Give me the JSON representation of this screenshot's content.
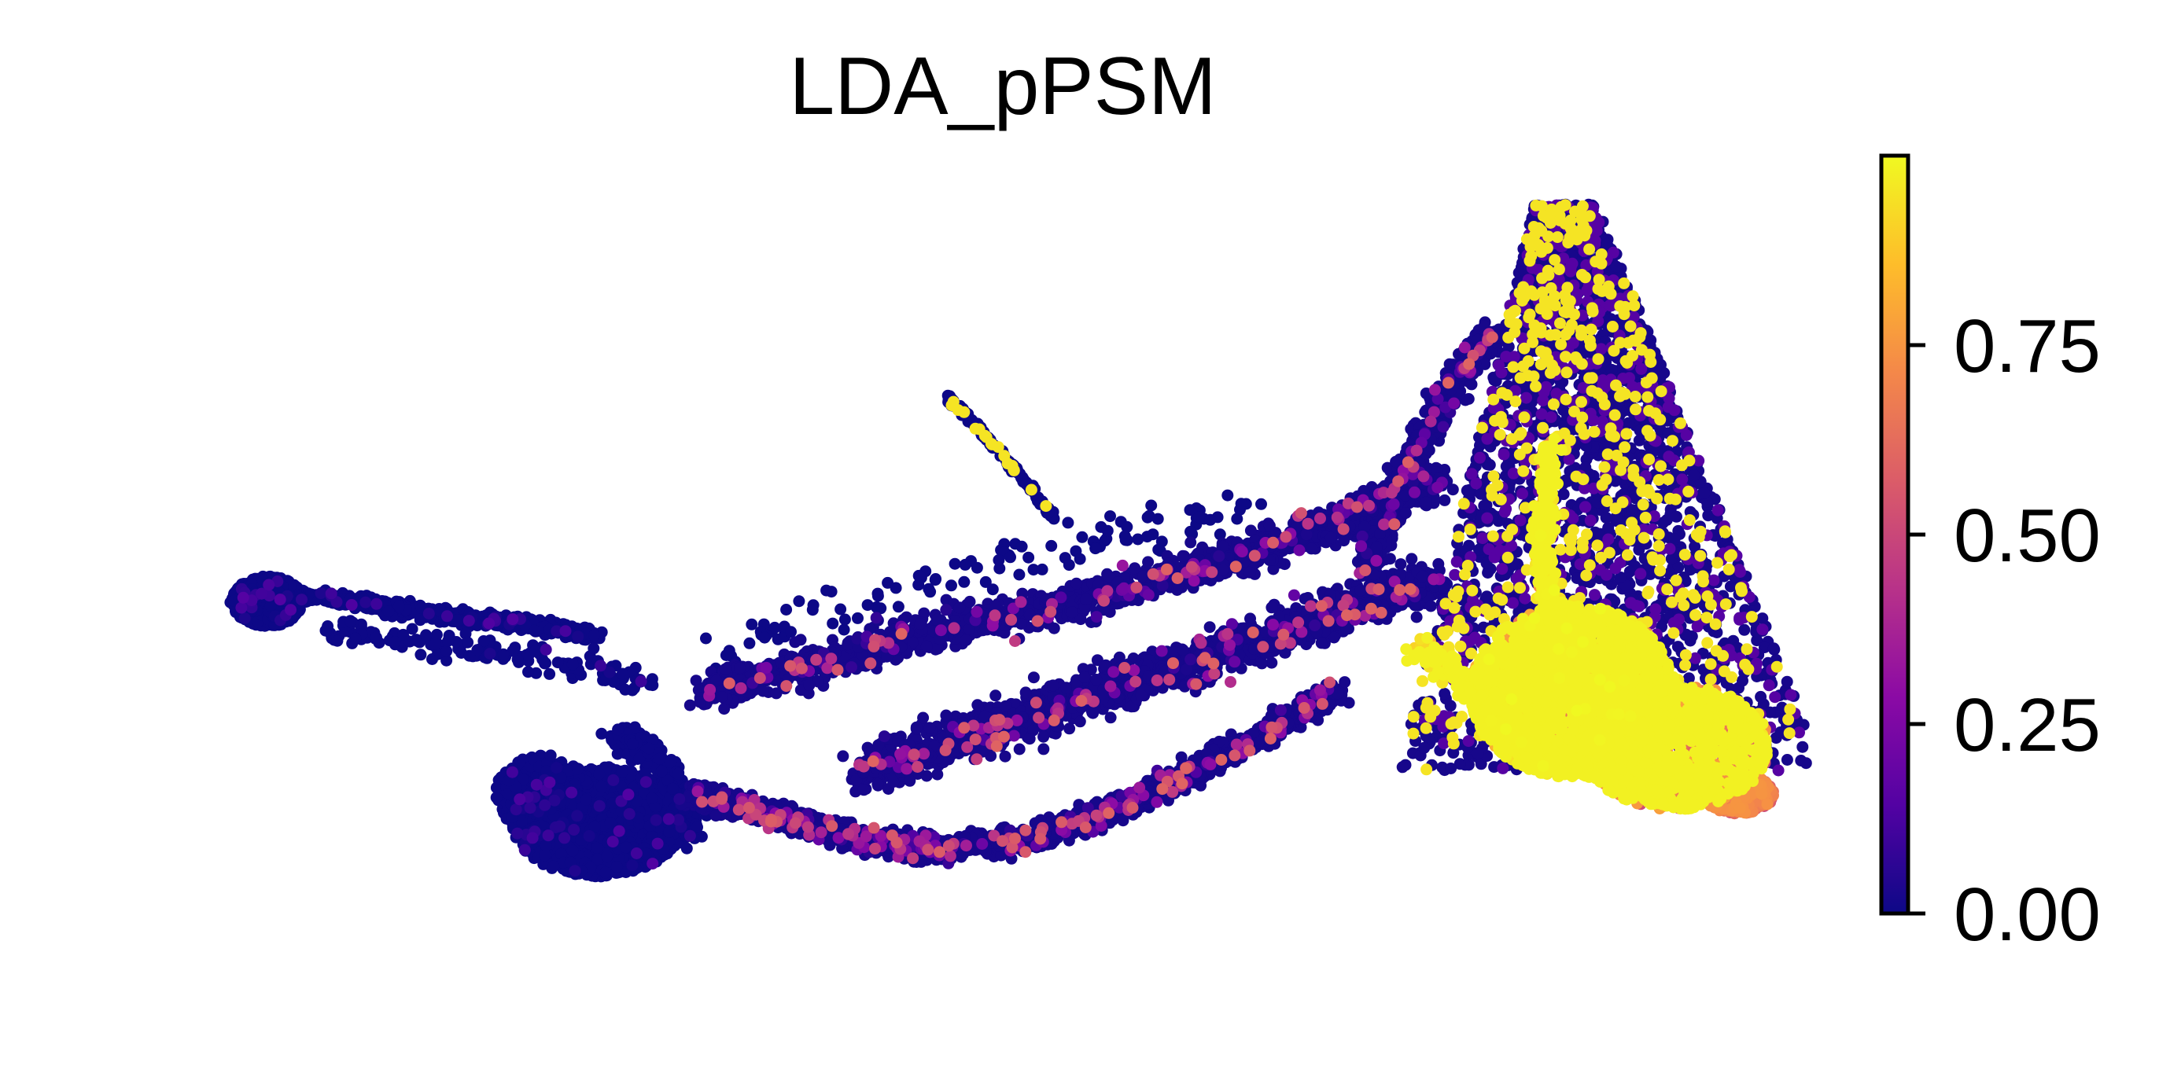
{
  "chart_data": {
    "type": "scatter",
    "title": "LDA_pPSM",
    "xlabel": "",
    "ylabel": "",
    "axes_visible": false,
    "grid": false,
    "colormap": "plasma",
    "colorbar": {
      "position": "right",
      "range": [
        0,
        1
      ],
      "ticks": [
        {
          "value": 0.0,
          "label": "0.00"
        },
        {
          "value": 0.25,
          "label": "0.25"
        },
        {
          "value": 0.5,
          "label": "0.50"
        },
        {
          "value": 0.75,
          "label": "0.75"
        }
      ],
      "stops": [
        "#0d0887",
        "#5302a3",
        "#8b0aa5",
        "#b83289",
        "#db5c68",
        "#f48849",
        "#febd2a",
        "#f0f921"
      ]
    },
    "regions": [
      {
        "name": "left-tail",
        "x": [
          0.0,
          0.22
        ],
        "y": [
          0.56,
          0.66
        ],
        "value": 0.0
      },
      {
        "name": "left-blob",
        "x": [
          0.18,
          0.31
        ],
        "y": [
          0.08,
          0.32
        ],
        "value": 0.0
      },
      {
        "name": "isolated-branch",
        "x": [
          0.44,
          0.53
        ],
        "y": [
          0.56,
          0.72
        ],
        "value": 0.02
      },
      {
        "name": "lower-arc",
        "x": [
          0.35,
          0.7
        ],
        "y": [
          0.08,
          0.42
        ],
        "value": 0.05
      },
      {
        "name": "middle-band",
        "x": [
          0.45,
          0.8
        ],
        "y": [
          0.3,
          0.7
        ],
        "value": 0.08
      },
      {
        "name": "peak",
        "x": [
          0.77,
          0.9
        ],
        "y": [
          0.55,
          1.0
        ],
        "value": 0.12
      },
      {
        "name": "yellow-cluster",
        "x": [
          0.8,
          0.95
        ],
        "y": [
          0.18,
          0.45
        ],
        "value": 0.95
      },
      {
        "name": "right-tip",
        "x": [
          0.92,
          1.0
        ],
        "y": [
          0.18,
          0.32
        ],
        "value": 0.55
      }
    ]
  }
}
